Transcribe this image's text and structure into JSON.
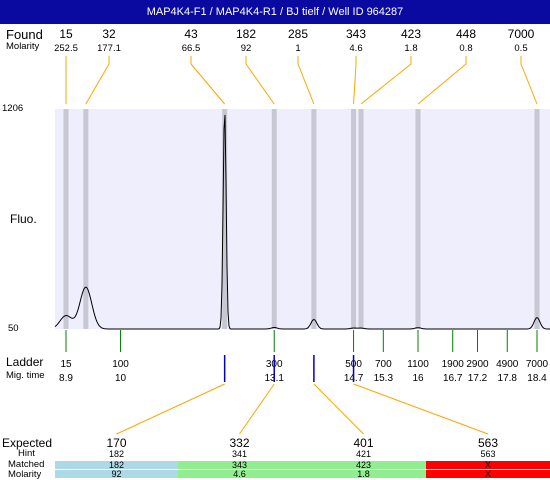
{
  "header": {
    "title": "MAP4K4-F1 / MAP4K4-R1 / BJ tielf / Well ID 964287"
  },
  "labels": {
    "found": "Found",
    "molarity": "Molarity",
    "fluo": "Fluo.",
    "ladder": "Ladder",
    "mig_time": "Mig. time",
    "expected": "Expected",
    "hint": "Hint",
    "matched": "Matched",
    "molarity_bottom": "Molarity"
  },
  "colors": {
    "header_bg": "#0a0aa0",
    "plot_bg": "#eeeefc",
    "peak_band": "#c8c8d4",
    "leader_line": "#ffa500",
    "ladder_tick": "#008000",
    "sample_tick": "#0000c8",
    "match_blue": "#add8e6",
    "match_green": "#90ee90",
    "match_red": "#ff0000"
  },
  "chart_data": {
    "type": "line",
    "ylim": [
      50,
      1206
    ],
    "ytick_labels": [
      "1206",
      "50"
    ],
    "found_peaks": [
      {
        "size": "15",
        "molarity": "252.5",
        "peak_time": 8.9,
        "height": 120
      },
      {
        "size": "32",
        "molarity": "177.1",
        "peak_time": 9.3,
        "height": 270
      },
      {
        "size": "43",
        "molarity": "66.5",
        "peak_time": 12.1,
        "height": 1206
      },
      {
        "size": "182",
        "molarity": "92",
        "peak_time": 13.1,
        "height": 58
      },
      {
        "size": "285",
        "molarity": "1",
        "peak_time": 13.9,
        "height": 100
      },
      {
        "size": "343",
        "molarity": "4.6",
        "peak_time": 14.7,
        "height": 55
      },
      {
        "size": "423",
        "molarity": "1.8",
        "peak_time": 14.85,
        "height": 55
      },
      {
        "size": "448",
        "molarity": "0.8",
        "peak_time": 16.0,
        "height": 57
      },
      {
        "size": "7000",
        "molarity": "0.5",
        "peak_time": 18.4,
        "height": 110
      }
    ],
    "ladder": [
      {
        "size": "15",
        "time": "8.9"
      },
      {
        "size": "100",
        "time": "10"
      },
      {
        "size": "300",
        "time": "13.1"
      },
      {
        "size": "500",
        "time": "14.7"
      },
      {
        "size": "700",
        "time": "15.3"
      },
      {
        "size": "1100",
        "time": "16"
      },
      {
        "size": "1900",
        "time": "16.7"
      },
      {
        "size": "2900",
        "time": "17.2"
      },
      {
        "size": "4900",
        "time": "17.8"
      },
      {
        "size": "7000",
        "time": "18.4"
      }
    ],
    "expected": [
      {
        "size": "170",
        "hint": "182",
        "matched": "182",
        "molarity": "92",
        "status": "blue"
      },
      {
        "size": "332",
        "hint": "341",
        "matched": "343",
        "molarity": "4.6",
        "status": "green"
      },
      {
        "size": "401",
        "hint": "421",
        "matched": "423",
        "molarity": "1.8",
        "status": "green"
      },
      {
        "size": "563",
        "hint": "563",
        "matched": "X",
        "molarity": "X",
        "status": "red"
      }
    ]
  }
}
